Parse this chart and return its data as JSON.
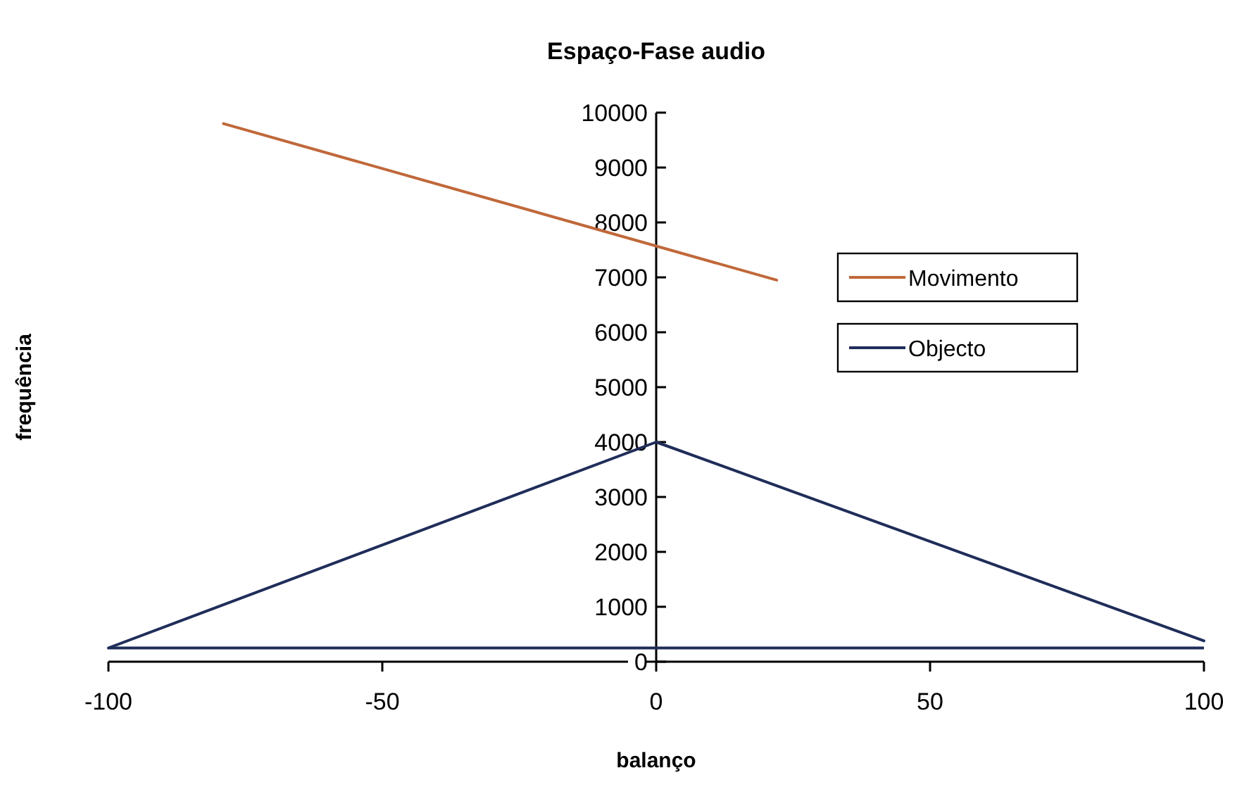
{
  "chart_data": {
    "type": "line",
    "title": "Espaço-Fase audio",
    "xlabel": "balanço",
    "ylabel": "frequência",
    "xlim": [
      -100,
      100
    ],
    "xticks": [
      -100,
      -50,
      0,
      50,
      100
    ],
    "ylim": [
      0,
      10000
    ],
    "yticks": [
      0,
      1000,
      2000,
      3000,
      4000,
      5000,
      6000,
      7000,
      8000,
      9000,
      10000
    ],
    "grid": false,
    "legend": "right",
    "marker": "none",
    "line_style": "solid",
    "series": [
      {
        "name": "Movimento",
        "color": "#c0683a",
        "x": [
          -79,
          22
        ],
        "values": [
          9800,
          6950
        ]
      },
      {
        "name": "Objecto",
        "color": "#1f2d5a",
        "x": [
          -100,
          0,
          100
        ],
        "values": [
          250,
          4000,
          380
        ]
      }
    ],
    "ref_lines": [
      {
        "axis": "y",
        "value": 250,
        "color": "#1f2d5a"
      }
    ]
  }
}
